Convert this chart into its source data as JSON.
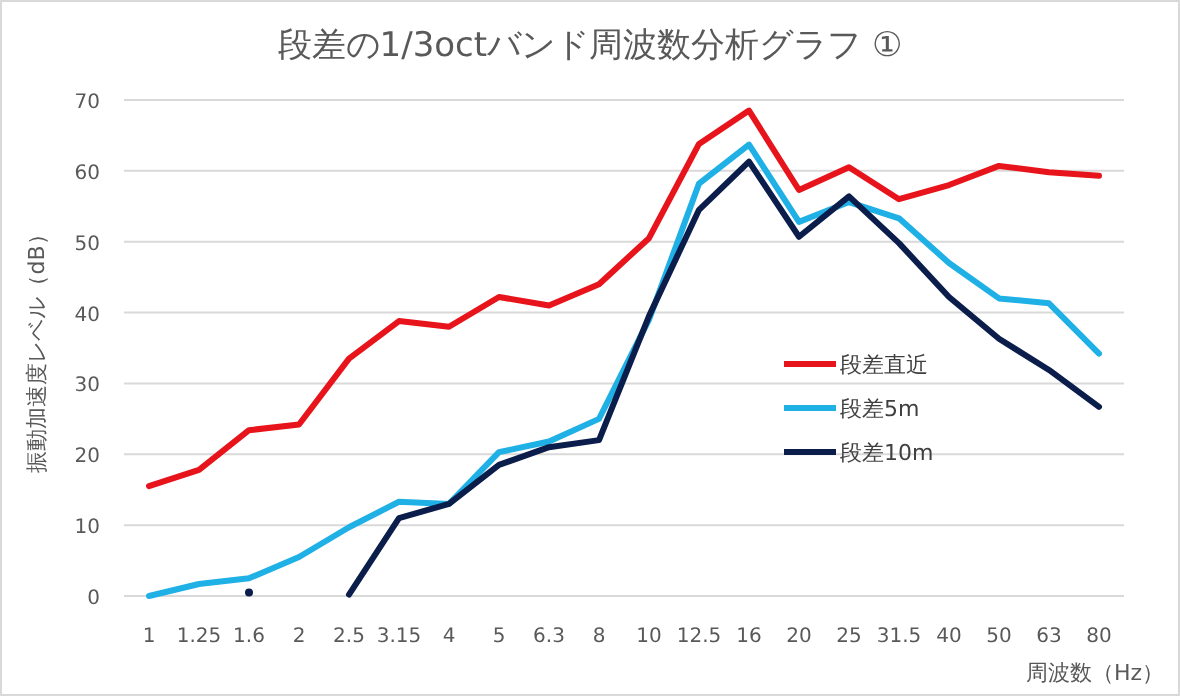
{
  "chart_data": {
    "type": "line",
    "title": "段差の1/3octバンド周波数分析グラフ ①",
    "xlabel": "周波数（Hz）",
    "ylabel": "振動加速度レベル（dB）",
    "categories": [
      "1",
      "1.25",
      "1.6",
      "2",
      "2.5",
      "3.15",
      "4",
      "5",
      "6.3",
      "8",
      "10",
      "12.5",
      "16",
      "20",
      "25",
      "31.5",
      "40",
      "50",
      "63",
      "80"
    ],
    "ylim": [
      0,
      70
    ],
    "yticks": [
      0,
      10,
      20,
      30,
      40,
      50,
      60,
      70
    ],
    "grid": "y",
    "legend": "right",
    "marker": "none",
    "line_style": "solid",
    "series": [
      {
        "name": "段差直近",
        "color": "#e8141b",
        "values": [
          15.5,
          17.8,
          23.4,
          24.2,
          33.5,
          38.8,
          38,
          42.2,
          41,
          44,
          50.5,
          63.8,
          68.5,
          57.3,
          60.5,
          56,
          58,
          60.7,
          59.8,
          59.3
        ]
      },
      {
        "name": "段差5m",
        "color": "#1fb0e6",
        "values": [
          0,
          1.7,
          2.5,
          5.5,
          9.7,
          13.3,
          13,
          20.3,
          21.8,
          25,
          39,
          58.2,
          63.7,
          52.8,
          55.6,
          53.3,
          47,
          42,
          41.3,
          34.2
        ]
      },
      {
        "name": "段差10m",
        "color": "#0b1d4a",
        "values": [
          null,
          null,
          0.5,
          null,
          0.2,
          11,
          13,
          18.5,
          21,
          22,
          39.5,
          54.5,
          61.3,
          50.7,
          56.4,
          49.8,
          42.2,
          36.3,
          31.9,
          26.7
        ]
      }
    ]
  }
}
